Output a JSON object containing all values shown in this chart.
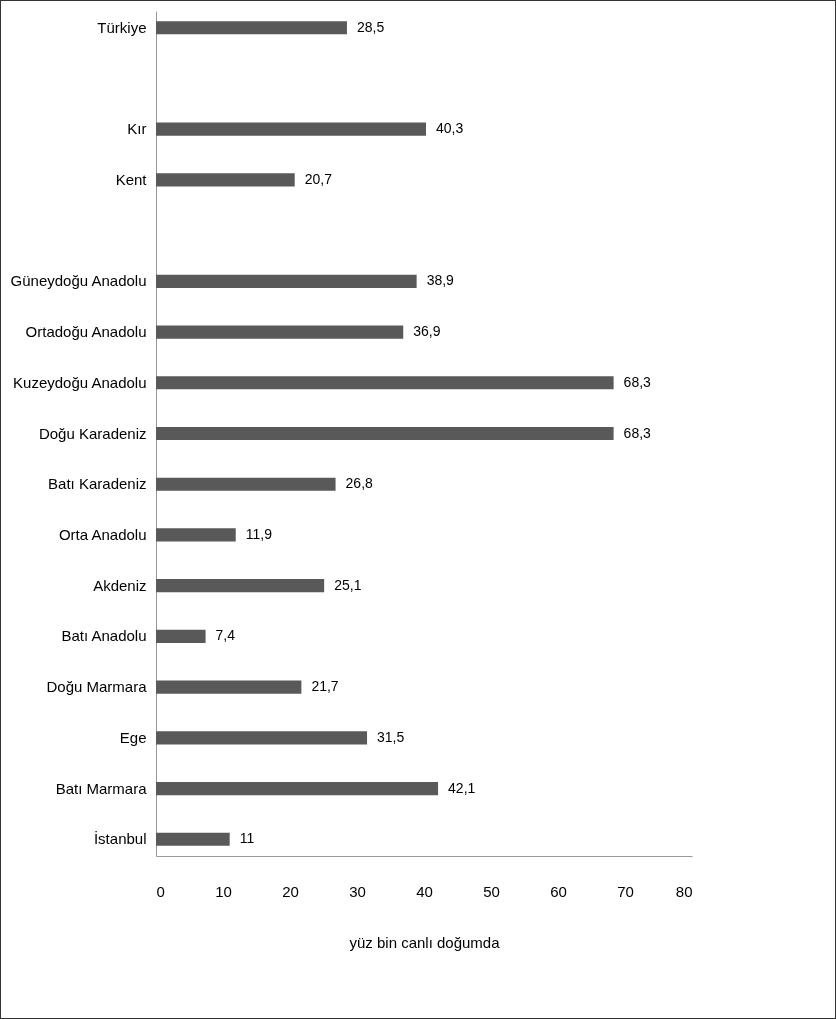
{
  "chart_data": {
    "type": "bar",
    "orientation": "horizontal",
    "xlabel": "yüz bin canlı doğumda",
    "categories": [
      "Türkiye",
      null,
      "Kır",
      "Kent",
      null,
      "Güneydoğu Anadolu",
      "Ortadoğu Anadolu",
      "Kuzeydoğu Anadolu",
      "Doğu Karadeniz",
      "Batı Karadeniz",
      "Orta Anadolu",
      "Akdeniz",
      "Batı Anadolu",
      "Doğu Marmara",
      "Ege",
      "Batı Marmara",
      "İstanbul"
    ],
    "values": [
      28.5,
      null,
      40.3,
      20.7,
      null,
      38.9,
      36.9,
      68.3,
      68.3,
      26.8,
      11.9,
      25.1,
      7.4,
      21.7,
      31.5,
      42.1,
      11
    ],
    "value_labels": [
      "28,5",
      null,
      "40,3",
      "20,7",
      null,
      "38,9",
      "36,9",
      "68,3",
      "68,3",
      "26,8",
      "11,9",
      "25,1",
      "7,4",
      "21,7",
      "31,5",
      "42,1",
      "11"
    ],
    "color": "#595959",
    "xlim": [
      0,
      80
    ],
    "xticks": [
      0,
      10,
      20,
      30,
      40,
      50,
      60,
      70,
      80
    ],
    "grid": false
  }
}
